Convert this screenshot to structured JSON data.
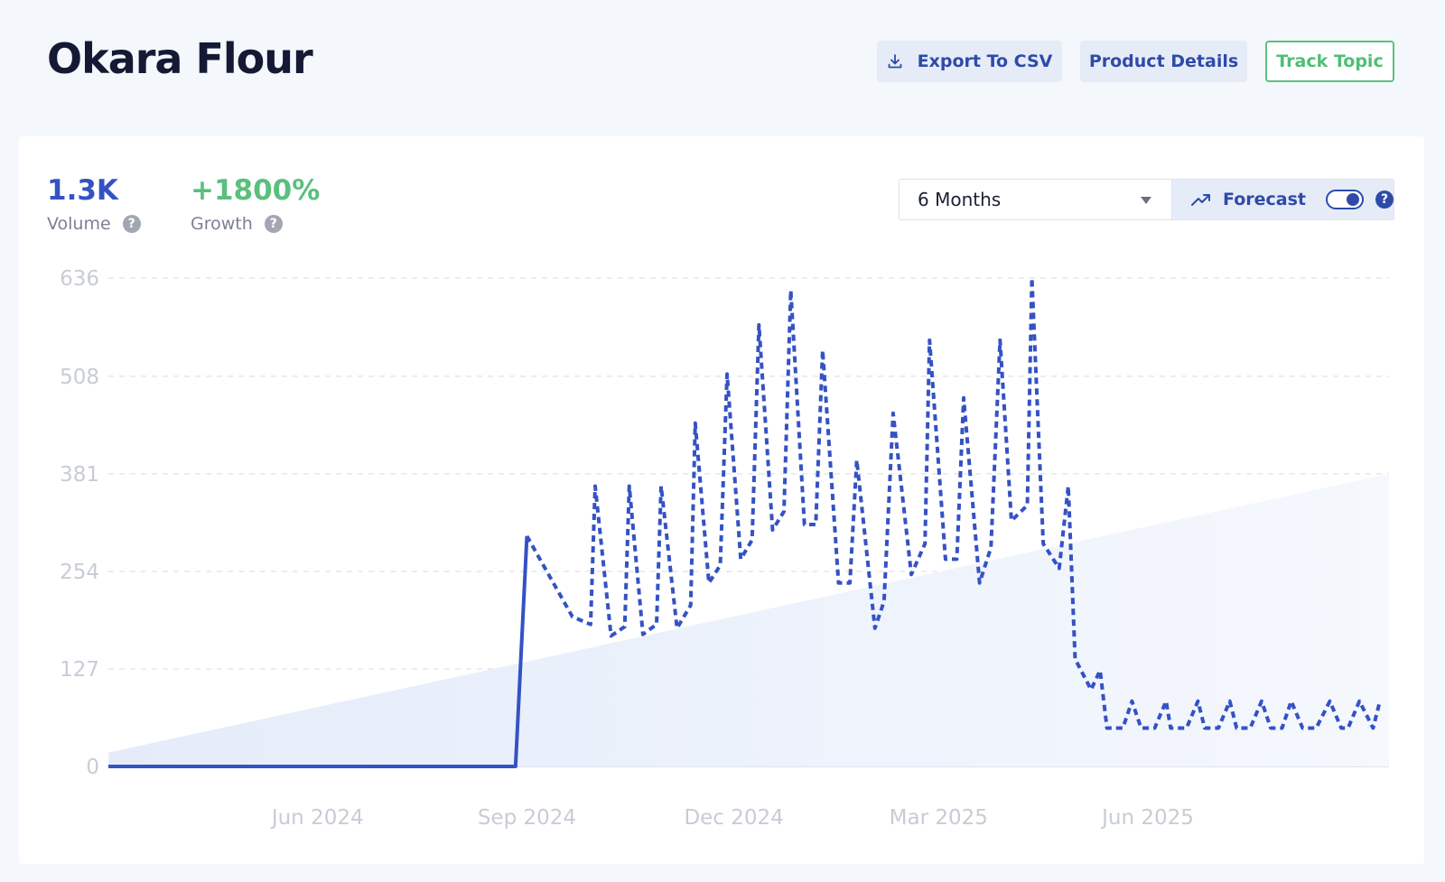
{
  "header": {
    "title": "Okara Flour",
    "export_label": "Export To CSV",
    "details_label": "Product Details",
    "track_label": "Track Topic"
  },
  "metrics": {
    "volume_value": "1.3K",
    "volume_label": "Volume",
    "growth_value": "+1800%",
    "growth_label": "Growth",
    "help_glyph": "?"
  },
  "controls": {
    "range_selected": "6 Months",
    "forecast_label": "Forecast",
    "forecast_enabled": true
  },
  "icons": {
    "export": "download-icon",
    "range": "chevron-down-icon",
    "forecast": "trending-up-icon",
    "help": "question-circle-icon"
  },
  "colors": {
    "accent": "#3552c4",
    "growth": "#5bbf7d",
    "track": "#4fbf73",
    "line": "#3552c4",
    "trend_fill": "#e8effb"
  },
  "chart_data": {
    "type": "line",
    "y_ticks": [
      "636",
      "508",
      "381",
      "254",
      "127",
      "0"
    ],
    "ylim": [
      0,
      636
    ],
    "x_ticks": [
      "Jun 2024",
      "Sep 2024",
      "Dec 2024",
      "Mar 2025",
      "Jun 2025"
    ],
    "xlim": [
      "2024-03-01",
      "2025-09-15"
    ],
    "grid": true,
    "series": [
      {
        "style": "solid",
        "x": [
          "2024-03-01",
          "2024-08-27",
          "2024-09-01"
        ],
        "y": [
          0,
          0,
          300
        ]
      },
      {
        "style": "dashed",
        "x": [
          "2024-09-01",
          "2024-09-21",
          "2024-09-29",
          "2024-10-01",
          "2024-10-08",
          "2024-10-14",
          "2024-10-16",
          "2024-10-22",
          "2024-10-28",
          "2024-10-30",
          "2024-11-06",
          "2024-11-12",
          "2024-11-14",
          "2024-11-20",
          "2024-11-25",
          "2024-11-28",
          "2024-12-04",
          "2024-12-09",
          "2024-12-12",
          "2024-12-18",
          "2024-12-23",
          "2024-12-26",
          "2025-01-01",
          "2025-01-06",
          "2025-01-09",
          "2025-01-16",
          "2025-01-21",
          "2025-01-24",
          "2025-02-01",
          "2025-02-05",
          "2025-02-09",
          "2025-02-17",
          "2025-02-23",
          "2025-02-25",
          "2025-03-04",
          "2025-03-09",
          "2025-03-12",
          "2025-03-19",
          "2025-03-24",
          "2025-03-28",
          "2025-04-02",
          "2025-04-09",
          "2025-04-11",
          "2025-04-16",
          "2025-04-23",
          "2025-04-27",
          "2025-04-30",
          "2025-05-07",
          "2025-05-11",
          "2025-05-14",
          "2025-05-21",
          "2025-05-25",
          "2025-05-29",
          "2025-06-04",
          "2025-06-09",
          "2025-06-11",
          "2025-06-18",
          "2025-06-23",
          "2025-06-26",
          "2025-07-02",
          "2025-07-07",
          "2025-07-10",
          "2025-07-16",
          "2025-07-21",
          "2025-07-25",
          "2025-07-30",
          "2025-08-03",
          "2025-08-08",
          "2025-08-14",
          "2025-08-20",
          "2025-08-25",
          "2025-08-28",
          "2025-09-02",
          "2025-09-08",
          "2025-09-11"
        ],
        "y": [
          300,
          195,
          185,
          365,
          170,
          182,
          365,
          172,
          185,
          365,
          180,
          210,
          447,
          239,
          262,
          511,
          270,
          295,
          575,
          308,
          332,
          620,
          315,
          315,
          542,
          239,
          239,
          399,
          180,
          215,
          460,
          250,
          290,
          555,
          270,
          270,
          480,
          239,
          285,
          555,
          320,
          340,
          636,
          290,
          258,
          365,
          140,
          100,
          125,
          50,
          50,
          85,
          50,
          50,
          85,
          50,
          50,
          85,
          50,
          50,
          85,
          50,
          50,
          85,
          50,
          50,
          85,
          50,
          50,
          85,
          50,
          50,
          85,
          50,
          85
        ]
      }
    ],
    "trend": {
      "x": [
        "2024-03-01",
        "2025-09-15"
      ],
      "y": [
        18,
        381
      ]
    }
  }
}
